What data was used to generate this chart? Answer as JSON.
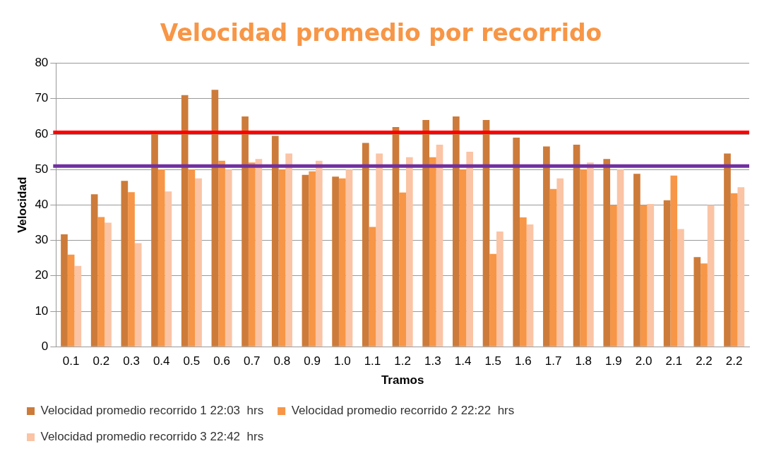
{
  "chart_data": {
    "type": "bar",
    "title": "Velocidad promedio por recorrido",
    "xlabel": "Tramos",
    "ylabel": "Velocidad",
    "categories": [
      "0.1",
      "0.2",
      "0.3",
      "0.4",
      "0.5",
      "0.6",
      "0.7",
      "0.8",
      "0.9",
      "1.0",
      "1.1",
      "1.2",
      "1.3",
      "1.4",
      "1.5",
      "1.6",
      "1.7",
      "1.8",
      "1.9",
      "2.0",
      "2.1",
      "2.2",
      "2.2"
    ],
    "series": [
      {
        "name": "Velocidad promedio recorrido 1 22:03  hrs",
        "color": "#cd7b3a",
        "values": [
          31.7,
          43,
          46.8,
          60,
          71,
          72.5,
          65,
          59.5,
          48.5,
          48,
          57.5,
          62,
          64,
          65,
          64,
          59,
          56.5,
          57,
          53,
          48.8,
          41.3,
          25.3,
          54.5
        ]
      },
      {
        "name": "Velocidad promedio recorrido 2 22:22  hrs",
        "color": "#f79646",
        "values": [
          26,
          36.6,
          43.6,
          50,
          50,
          52.5,
          52,
          50,
          49.5,
          47.5,
          33.8,
          43.5,
          53.5,
          50,
          26.2,
          36.5,
          44.5,
          50,
          40,
          40,
          48.3,
          23.5,
          43.3
        ]
      },
      {
        "name": "Velocidad promedio recorrido 3 22:42  hrs",
        "color": "#fac4a5",
        "values": [
          22.8,
          35,
          29.2,
          43.8,
          47.5,
          50,
          53,
          54.5,
          52.5,
          50,
          54.5,
          53.5,
          57,
          55,
          32.5,
          34.5,
          47.5,
          52,
          50,
          40.3,
          33.2,
          40,
          45
        ]
      }
    ],
    "ylim": [
      0,
      80
    ],
    "yticks": [
      0,
      10,
      20,
      30,
      40,
      50,
      60,
      70,
      80
    ],
    "grid": "y",
    "legend": "bottom",
    "ref_lines": [
      {
        "axis": "y",
        "value": 60.5,
        "color": "#ff0000"
      },
      {
        "axis": "y",
        "value": 51,
        "color": "#7030a0"
      }
    ]
  }
}
